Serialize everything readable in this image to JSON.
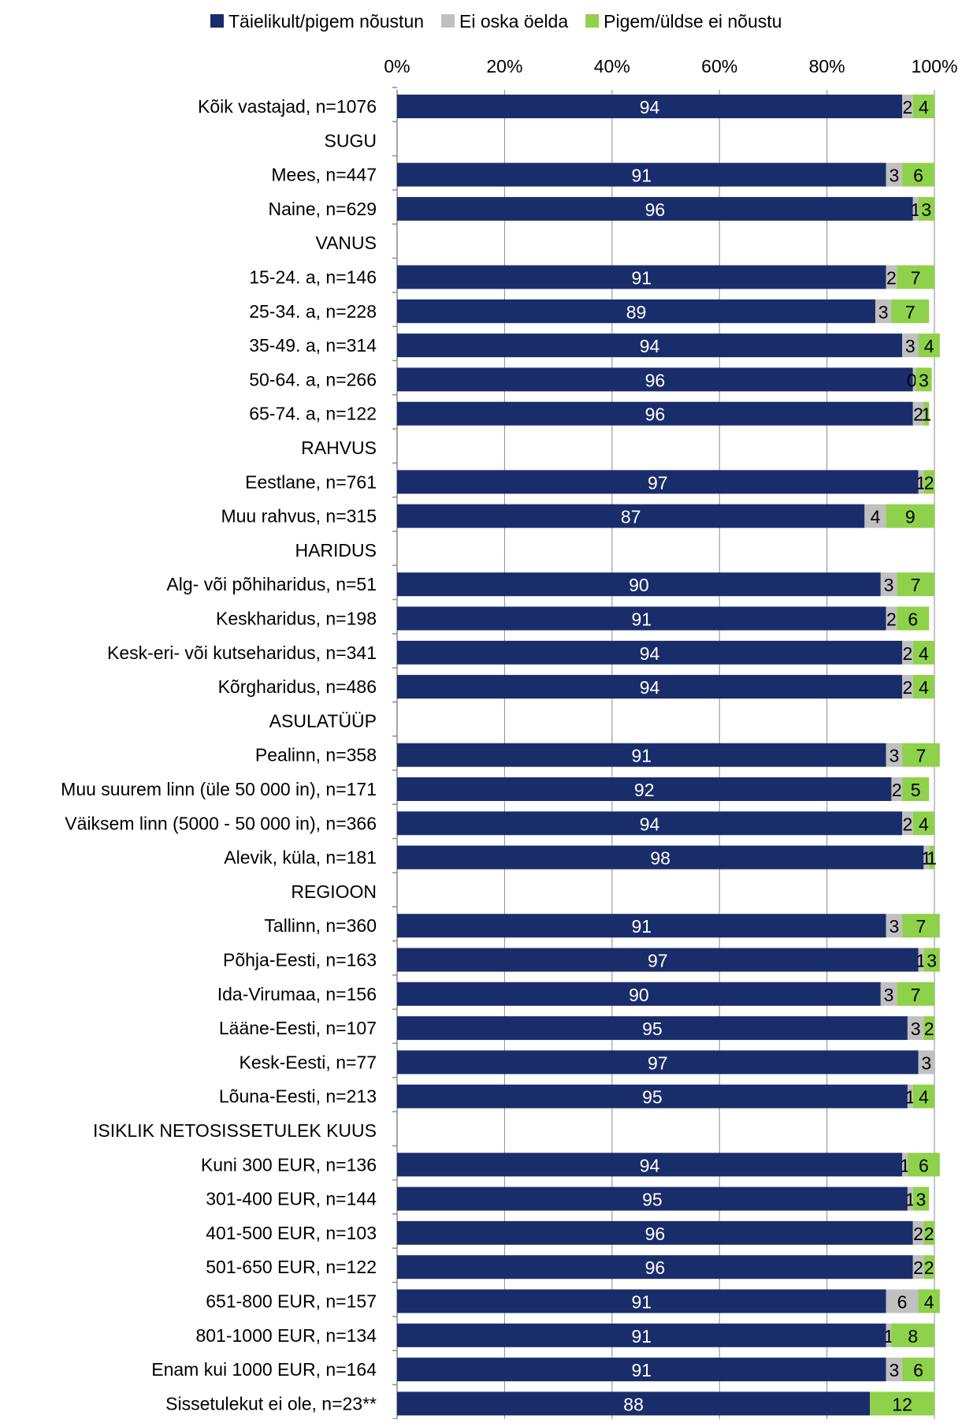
{
  "chart_data": {
    "type": "bar",
    "orientation": "horizontal",
    "stacked": true,
    "percent_axis": true,
    "xlim": [
      0,
      100
    ],
    "xticks": [
      "0%",
      "20%",
      "40%",
      "60%",
      "80%",
      "100%"
    ],
    "grid": true,
    "legend_position": "top",
    "categories": [
      "Kõik vastajad, n=1076",
      "SUGU",
      "Mees, n=447",
      "Naine, n=629",
      "VANUS",
      "15-24. a, n=146",
      "25-34. a, n=228",
      "35-49. a, n=314",
      "50-64. a, n=266",
      "65-74. a, n=122",
      "RAHVUS",
      "Eestlane, n=761",
      "Muu rahvus, n=315",
      "HARIDUS",
      "Alg- või põhiharidus,  n=51",
      "Keskharidus, n=198",
      "Kesk-eri- või kutseharidus,  n=341",
      "Kõrgharidus, n=486",
      "ASULATÜÜP",
      "Pealinn, n=358",
      "Muu suurem linn (üle 50 000 in), n=171",
      "Väiksem linn (5000 - 50 000 in), n=366",
      "Alevik, küla, n=181",
      "REGIOON",
      "Tallinn, n=360",
      "Põhja-Eesti, n=163",
      "Ida-Virumaa, n=156",
      "Lääne-Eesti, n=107",
      "Kesk-Eesti, n=77",
      "Lõuna-Eesti, n=213",
      "ISIKLIK NETOSISSETULEK KUUS",
      "Kuni 300 EUR, n=136",
      "301-400 EUR, n=144",
      "401-500 EUR, n=103",
      "501-650 EUR, n=122",
      "651-800 EUR, n=157",
      "801-1000 EUR, n=134",
      "Enam kui 1000 EUR, n=164",
      "Sissetulekut ei ole, n=23**"
    ],
    "series": [
      {
        "name": "Täielikult/pigem nõustun",
        "color": "#1a2d6b",
        "label_color": "#ffffff",
        "values": [
          94,
          null,
          91,
          96,
          null,
          91,
          89,
          94,
          96,
          96,
          null,
          97,
          87,
          null,
          90,
          91,
          94,
          94,
          null,
          91,
          92,
          94,
          98,
          null,
          91,
          97,
          90,
          95,
          97,
          95,
          null,
          94,
          95,
          96,
          96,
          91,
          91,
          91,
          88
        ],
        "labels": [
          "94",
          "",
          "91",
          "96",
          "",
          "91",
          "89",
          "94",
          "96",
          "96",
          "",
          "97",
          "87",
          "",
          "90",
          "91",
          "94",
          "94",
          "",
          "91",
          "92",
          "94",
          "98",
          "",
          "91",
          "97",
          "90",
          "95",
          "97",
          "95",
          "",
          "94",
          "95",
          "96",
          "96",
          "91",
          "91",
          "91",
          "88"
        ]
      },
      {
        "name": "Ei oska öelda",
        "color": "#c0c0c0",
        "label_color": "#000000",
        "values": [
          2,
          null,
          3,
          1,
          null,
          2,
          3,
          3,
          0.5,
          2,
          null,
          1,
          4,
          null,
          3,
          2,
          2,
          2,
          null,
          3,
          2,
          2,
          1,
          null,
          3,
          1,
          3,
          3,
          3,
          1,
          null,
          1,
          1,
          2,
          2,
          6,
          1,
          3,
          0
        ],
        "labels": [
          "2",
          "",
          "3",
          "1",
          "",
          "2",
          "3",
          "3",
          "0,",
          "2",
          "",
          "1",
          "4",
          "",
          "3",
          "2",
          "2",
          "2",
          "",
          "3",
          "2",
          "2",
          "1",
          "",
          "3",
          "1",
          "3",
          "3",
          "3",
          "1",
          "",
          "1",
          "1",
          "2",
          "2",
          "6",
          "1",
          "3",
          ""
        ]
      },
      {
        "name": "Pigem/üldse ei nõustu",
        "color": "#8ed14a",
        "label_color": "#000000",
        "values": [
          4,
          null,
          6,
          3,
          null,
          7,
          7,
          4,
          3,
          1,
          null,
          2,
          9,
          null,
          7,
          6,
          4,
          4,
          null,
          7,
          5,
          4,
          1,
          null,
          7,
          3,
          7,
          2,
          0,
          4,
          null,
          6,
          3,
          2,
          2,
          4,
          8,
          6,
          12
        ],
        "labels": [
          "4",
          "",
          "6",
          "3",
          "",
          "7",
          "7",
          "4",
          "3",
          "1",
          "",
          "2",
          "9",
          "",
          "7",
          "6",
          "4",
          "4",
          "",
          "7",
          "5",
          "4",
          "1",
          "",
          "7",
          "3",
          "7",
          "2",
          "",
          "4",
          "",
          "6",
          "3",
          "2",
          "2",
          "4",
          "8",
          "6",
          "12"
        ]
      }
    ]
  }
}
